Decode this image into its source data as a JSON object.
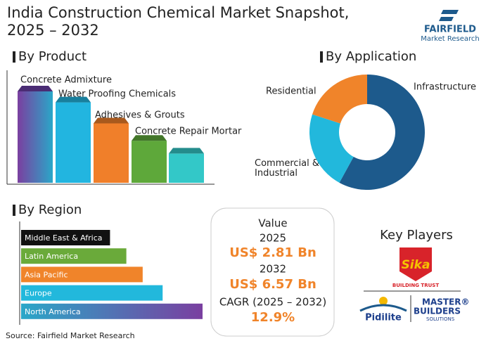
{
  "title": "India Construction Chemical Market Snapshot, 2025 – 2032",
  "logo": {
    "name": "FAIRFIELD",
    "tagline": "Market Research"
  },
  "chart_data": [
    {
      "type": "bar",
      "title": "By Product",
      "categories": [
        "Concrete Admixture",
        "Water Proofing Chemicals",
        "Adhesives & Grouts",
        "Concrete Repair Mortar",
        null
      ],
      "values": [
        100,
        88,
        65,
        46,
        32
      ],
      "colors": [
        "#6a3fa6",
        "#22b5e0",
        "#f07f2a",
        "#5ea83a",
        "#33c8c8"
      ]
    },
    {
      "type": "donut",
      "title": "By Application",
      "categories": [
        "Infrastructure",
        "Commercial & Industrial",
        "Residential"
      ],
      "values": [
        58,
        22,
        20
      ],
      "colors": [
        "#1d5a8c",
        "#22b8dc",
        "#f0842a"
      ]
    },
    {
      "type": "hbar",
      "title": "By Region",
      "categories": [
        "Middle East & Africa",
        "Latin America",
        "Asia Pacific",
        "Europe",
        "North America"
      ],
      "values": [
        49,
        58,
        67,
        78,
        100
      ],
      "colors": [
        "#111111",
        "#6aaa3a",
        "#f0842a",
        "#22b8dc",
        "#7a3fa0"
      ]
    }
  ],
  "snapshot": {
    "label": "Value",
    "start_year": "2025",
    "start_value": "US$ 2.81 Bn",
    "end_year": "2032",
    "end_value": "US$ 6.57 Bn",
    "cagr_label": "CAGR (2025 – 2032)",
    "cagr": "12.9%"
  },
  "key_players": {
    "title": "Key Players",
    "sika": "Sika",
    "sika_tagline": "BUILDING TRUST",
    "pidilite": "Pidilite",
    "mb_line1": "MASTER®",
    "mb_line2": "BUILDERS",
    "mb_line3": "SOLUTIONS"
  },
  "source": "Source: Fairfield Market Research"
}
